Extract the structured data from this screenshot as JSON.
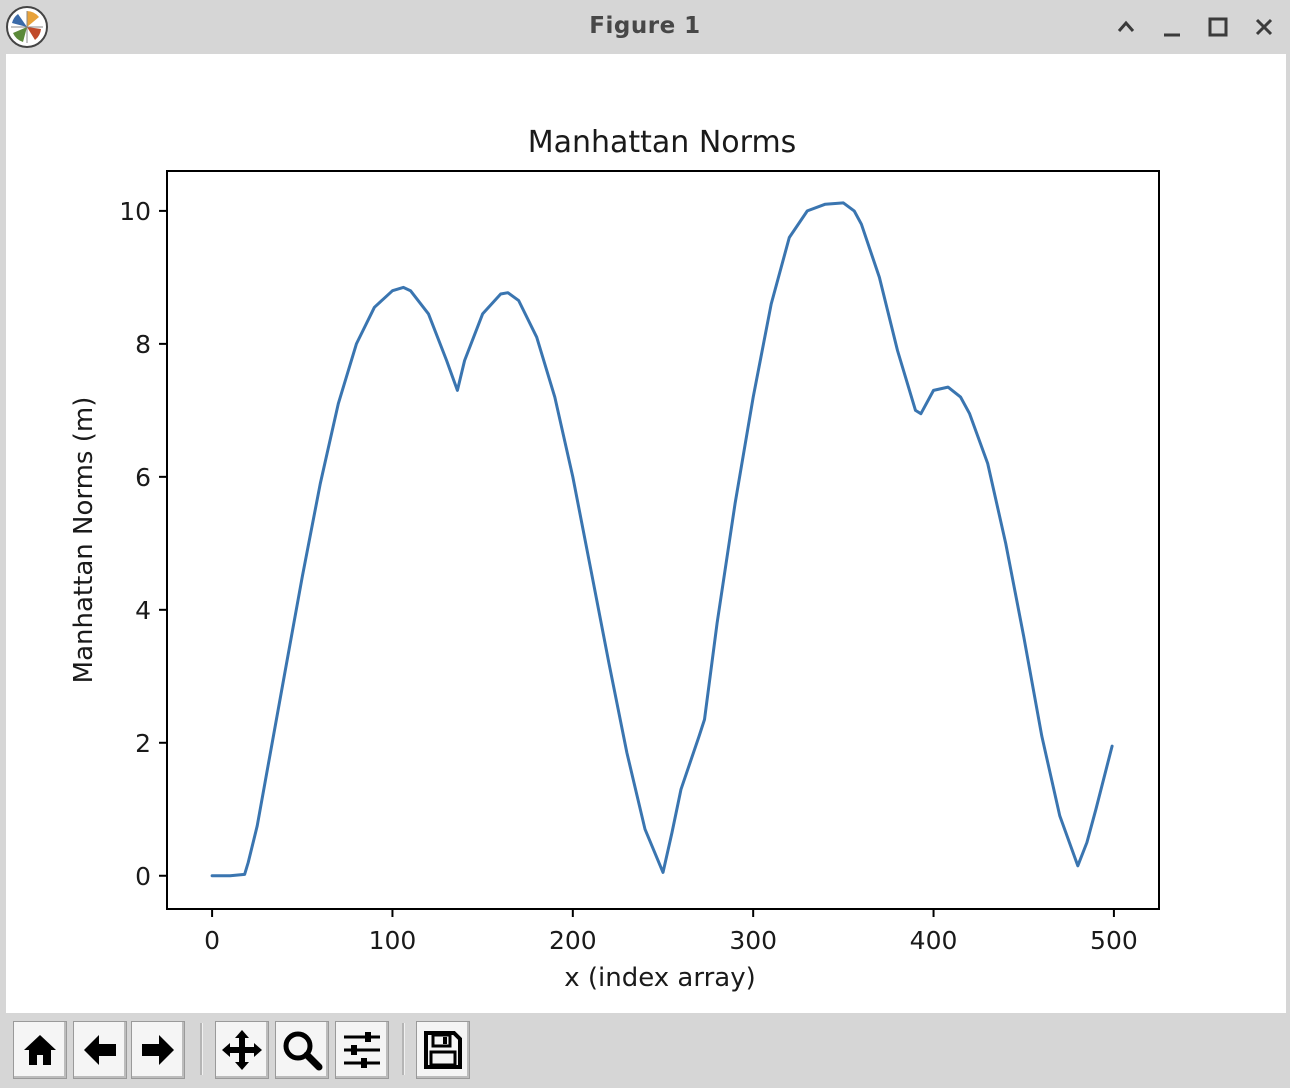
{
  "window": {
    "title": "Figure 1",
    "icon": "matplotlib-logo-icon",
    "controls": [
      "collapse-icon",
      "minimize-icon",
      "maximize-icon",
      "close-icon"
    ]
  },
  "toolbar": {
    "buttons": [
      "home-icon",
      "back-arrow-icon",
      "forward-arrow-icon",
      "pan-icon",
      "zoom-icon",
      "configure-subplots-icon",
      "save-icon"
    ]
  },
  "colors": {
    "line": "#3a75b0",
    "chrome": "#d6d6d6"
  },
  "chart_data": {
    "type": "line",
    "title": "Manhattan Norms",
    "xlabel": "x (index array)",
    "ylabel": "Manhattan Norms (m)",
    "xlim": [
      -25,
      525
    ],
    "ylim": [
      -0.5,
      10.6
    ],
    "xticks": [
      0,
      100,
      200,
      300,
      400,
      500
    ],
    "xtick_labels": [
      "0",
      "100",
      "200",
      "300",
      "400",
      "500"
    ],
    "yticks": [
      0,
      2,
      4,
      6,
      8,
      10
    ],
    "ytick_labels": [
      "0",
      "2",
      "4",
      "6",
      "8",
      "10"
    ],
    "grid": false,
    "series": [
      {
        "x": [
          0,
          10,
          18,
          20,
          25,
          30,
          40,
          50,
          60,
          70,
          80,
          90,
          100,
          106,
          110,
          120,
          130,
          136,
          140,
          150,
          160,
          164,
          170,
          180,
          190,
          200,
          210,
          220,
          230,
          240,
          250,
          255,
          260,
          270,
          273,
          280,
          290,
          300,
          310,
          320,
          330,
          340,
          350,
          356,
          360,
          370,
          380,
          390,
          393,
          400,
          408,
          415,
          420,
          430,
          440,
          450,
          460,
          470,
          480,
          485,
          490,
          499
        ],
        "y": [
          0,
          0,
          0.02,
          0.2,
          0.75,
          1.5,
          3.0,
          4.5,
          5.9,
          7.1,
          8.0,
          8.55,
          8.8,
          8.85,
          8.8,
          8.45,
          7.75,
          7.3,
          7.75,
          8.45,
          8.75,
          8.77,
          8.65,
          8.1,
          7.2,
          6.0,
          4.6,
          3.2,
          1.85,
          0.7,
          0.05,
          0.65,
          1.3,
          2.1,
          2.35,
          3.8,
          5.6,
          7.2,
          8.6,
          9.6,
          10.0,
          10.1,
          10.12,
          10.0,
          9.8,
          9.0,
          7.9,
          7.0,
          6.95,
          7.3,
          7.35,
          7.2,
          6.95,
          6.2,
          5.0,
          3.6,
          2.1,
          0.9,
          0.15,
          0.5,
          1.0,
          1.95
        ]
      }
    ]
  }
}
